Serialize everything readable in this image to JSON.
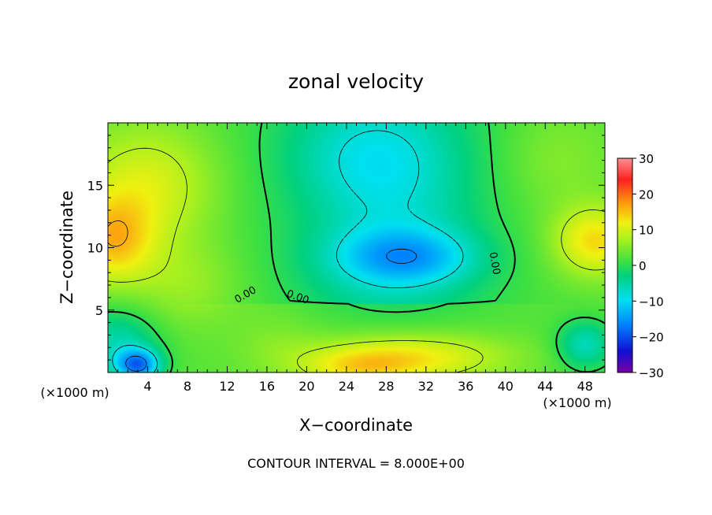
{
  "chart_data": {
    "type": "heatmap",
    "title": "zonal velocity",
    "xlabel": "X−coordinate",
    "ylabel": "Z−coordinate",
    "x_unit_left": "(×1000 m)",
    "x_unit_right": "(×1000 m)",
    "footer": "CONTOUR INTERVAL = 8.000E+00",
    "xlim": [
      0,
      50
    ],
    "ylim": [
      0,
      20
    ],
    "x_ticks": [
      4,
      8,
      12,
      16,
      20,
      24,
      28,
      32,
      36,
      40,
      44,
      48
    ],
    "y_ticks": [
      5,
      10,
      15
    ],
    "colorbar": {
      "min": -30,
      "max": 30,
      "tick_values": [
        30,
        20,
        10,
        0,
        -10,
        -20,
        -30
      ],
      "tick_labels": [
        "30",
        "20",
        "10",
        "0",
        "−10",
        "−20",
        "−30"
      ]
    },
    "zero_contour_label": "0.00",
    "contour_interval": 8,
    "field_peaks": [
      {
        "x": 30,
        "z": 9.2,
        "value": -11,
        "sx": 5,
        "sz": 1.6
      },
      {
        "x": 29,
        "z": 12.5,
        "value": -5,
        "sx": 6,
        "sz": 6
      },
      {
        "x": 26,
        "z": 17.5,
        "value": -5,
        "sx": 6,
        "sz": 3
      },
      {
        "x": 30,
        "z": 1.2,
        "value": 11,
        "sx": 7,
        "sz": 1.4
      },
      {
        "x": 25,
        "z": 0.3,
        "value": 6,
        "sx": 4,
        "sz": 1.0
      },
      {
        "x": 3,
        "z": 0.6,
        "value": -18,
        "sx": 1.6,
        "sz": 0.9
      },
      {
        "x": 1,
        "z": 2.5,
        "value": -8,
        "sx": 3,
        "sz": 2
      },
      {
        "x": 0.4,
        "z": 10.5,
        "value": 11,
        "sx": 3,
        "sz": 2.5
      },
      {
        "x": 4,
        "z": 15,
        "value": 8,
        "sx": 5,
        "sz": 3.5
      },
      {
        "x": 8,
        "z": 7,
        "value": 4,
        "sx": 4,
        "sz": 2.5
      },
      {
        "x": 49,
        "z": 10.5,
        "value": 11,
        "sx": 3,
        "sz": 2
      },
      {
        "x": 48,
        "z": 2.2,
        "value": -9,
        "sx": 2,
        "sz": 1.4
      },
      {
        "x": 45,
        "z": 17,
        "value": 3,
        "sx": 4,
        "sz": 3
      },
      {
        "x": 17,
        "z": 2.5,
        "value": 2,
        "sx": 3,
        "sz": 2
      }
    ]
  }
}
